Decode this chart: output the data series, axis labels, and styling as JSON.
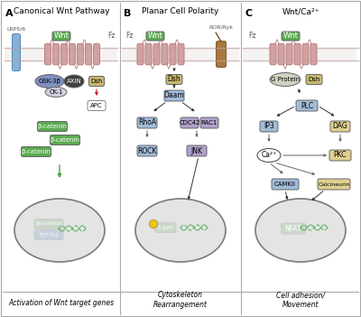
{
  "panel_A_title": "Canonical Wnt Pathway",
  "panel_B_title": "Planar Cell Polarity",
  "panel_C_title": "Wnt/Ca²⁺",
  "panel_A_label": "A",
  "panel_B_label": "B",
  "panel_C_label": "C",
  "panel_A_bottom": "Activation of Wnt target genes",
  "panel_B_bottom": "Cytoskeleton\nRearrangement",
  "panel_C_bottom": "Cell adhesion/\nMovement",
  "wnt_fill": "#5aaa50",
  "wnt_text": "#ffffff",
  "green_fill": "#5aaa50",
  "green_text": "#ffffff",
  "blue_fill": "#a0bcd8",
  "blue_text": "#000000",
  "purple_fill": "#b0a0cc",
  "purple_text": "#000000",
  "tan_fill": "#c8b870",
  "tan_text": "#000000",
  "yellow_fill": "#e0d090",
  "yellow_text": "#000000",
  "axin_fill": "#404040",
  "axin_text": "#ffffff",
  "gsk_fill": "#8090c0",
  "gsk_text": "#000000",
  "ck1_fill": "#d0d0e0",
  "ck1_text": "#000000",
  "gprotein_fill": "#d0d0c0",
  "gprotein_text": "#000000",
  "tcf_fill": "#3878cc",
  "tcf_text": "#ffffff",
  "nfat_fill": "#5aaa50",
  "nfat_text": "#ffffff",
  "mem_fill": "#c8a0a0",
  "mem_edge": "#a07878",
  "lrp_fill": "#88b0d8",
  "lrp_edge": "#5088b0",
  "ror_fill": "#a87840",
  "ror_edge": "#805828",
  "separator": "#aaaaaa",
  "border": "#aaaaaa"
}
